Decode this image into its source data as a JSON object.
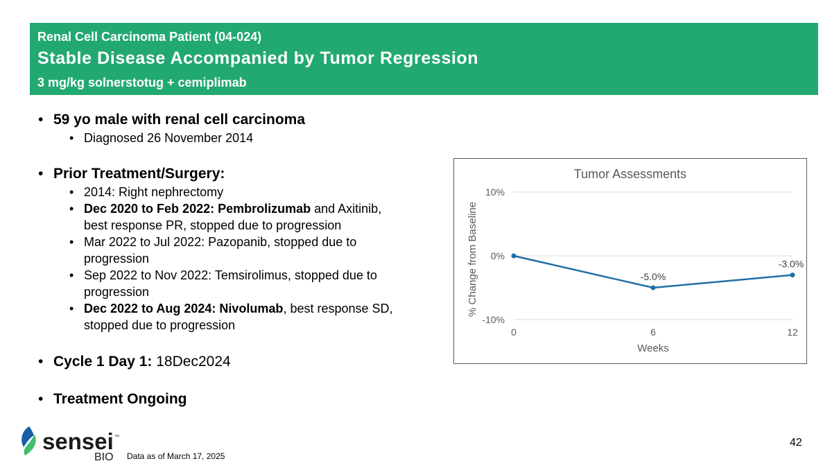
{
  "header": {
    "supertitle": "Renal Cell Carcinoma Patient (04-024)",
    "title": "Stable Disease Accompanied by Tumor Regression",
    "subtitle": "3 mg/kg solnerstotug + cemiplimab"
  },
  "bullets": {
    "patient": "59 yo male with renal cell carcinoma",
    "diagnosed": "Diagnosed 26 November 2014",
    "prior_heading": "Prior Treatment/Surgery:",
    "t1": "2014: Right nephrectomy",
    "t2_bold": "Dec 2020 to Feb 2022: Pembrolizumab",
    "t2_rest": " and Axitinib,",
    "t2_line2": "best response PR, stopped due to progression",
    "t3_line1": "Mar 2022 to Jul 2022: Pazopanib, stopped due to",
    "t3_line2": "progression",
    "t4_line1": "Sep 2022 to Nov 2022: Temsirolimus, stopped due to",
    "t4_line2": "progression",
    "t5_bold": "Dec 2022 to Aug 2024: Nivolumab",
    "t5_rest": ", best response SD,",
    "t5_line2": "stopped due to progression",
    "cycle_label": "Cycle 1 Day 1:",
    "cycle_value": " 18Dec2024",
    "ongoing": "Treatment Ongoing",
    "bullet_char": "•"
  },
  "chart_data": {
    "type": "line",
    "title": "Tumor Assessments",
    "xlabel": "Weeks",
    "ylabel": "% Change from Baseline",
    "x": [
      0,
      6,
      12
    ],
    "values": [
      0,
      -5.0,
      -3.0
    ],
    "data_labels": [
      "",
      "-5.0%",
      "-3.0%"
    ],
    "xlim": [
      0,
      12
    ],
    "ylim": [
      -10,
      10
    ],
    "yticks": [
      10,
      0,
      -10
    ],
    "ytick_labels": [
      "10%",
      "0%",
      "-10%"
    ],
    "xtick_labels": [
      "0",
      "6",
      "12"
    ],
    "grid": true,
    "line_color": "#1f6fa6"
  },
  "footer": {
    "brand": "sensei",
    "brand_sub": "BIO",
    "trademark": "™",
    "note": "Data as of March 17, 2025",
    "page_number": "42"
  },
  "colors": {
    "header_bg": "#22a971",
    "logo_blue": "#1b5fa8",
    "logo_green": "#3fbf6b"
  }
}
